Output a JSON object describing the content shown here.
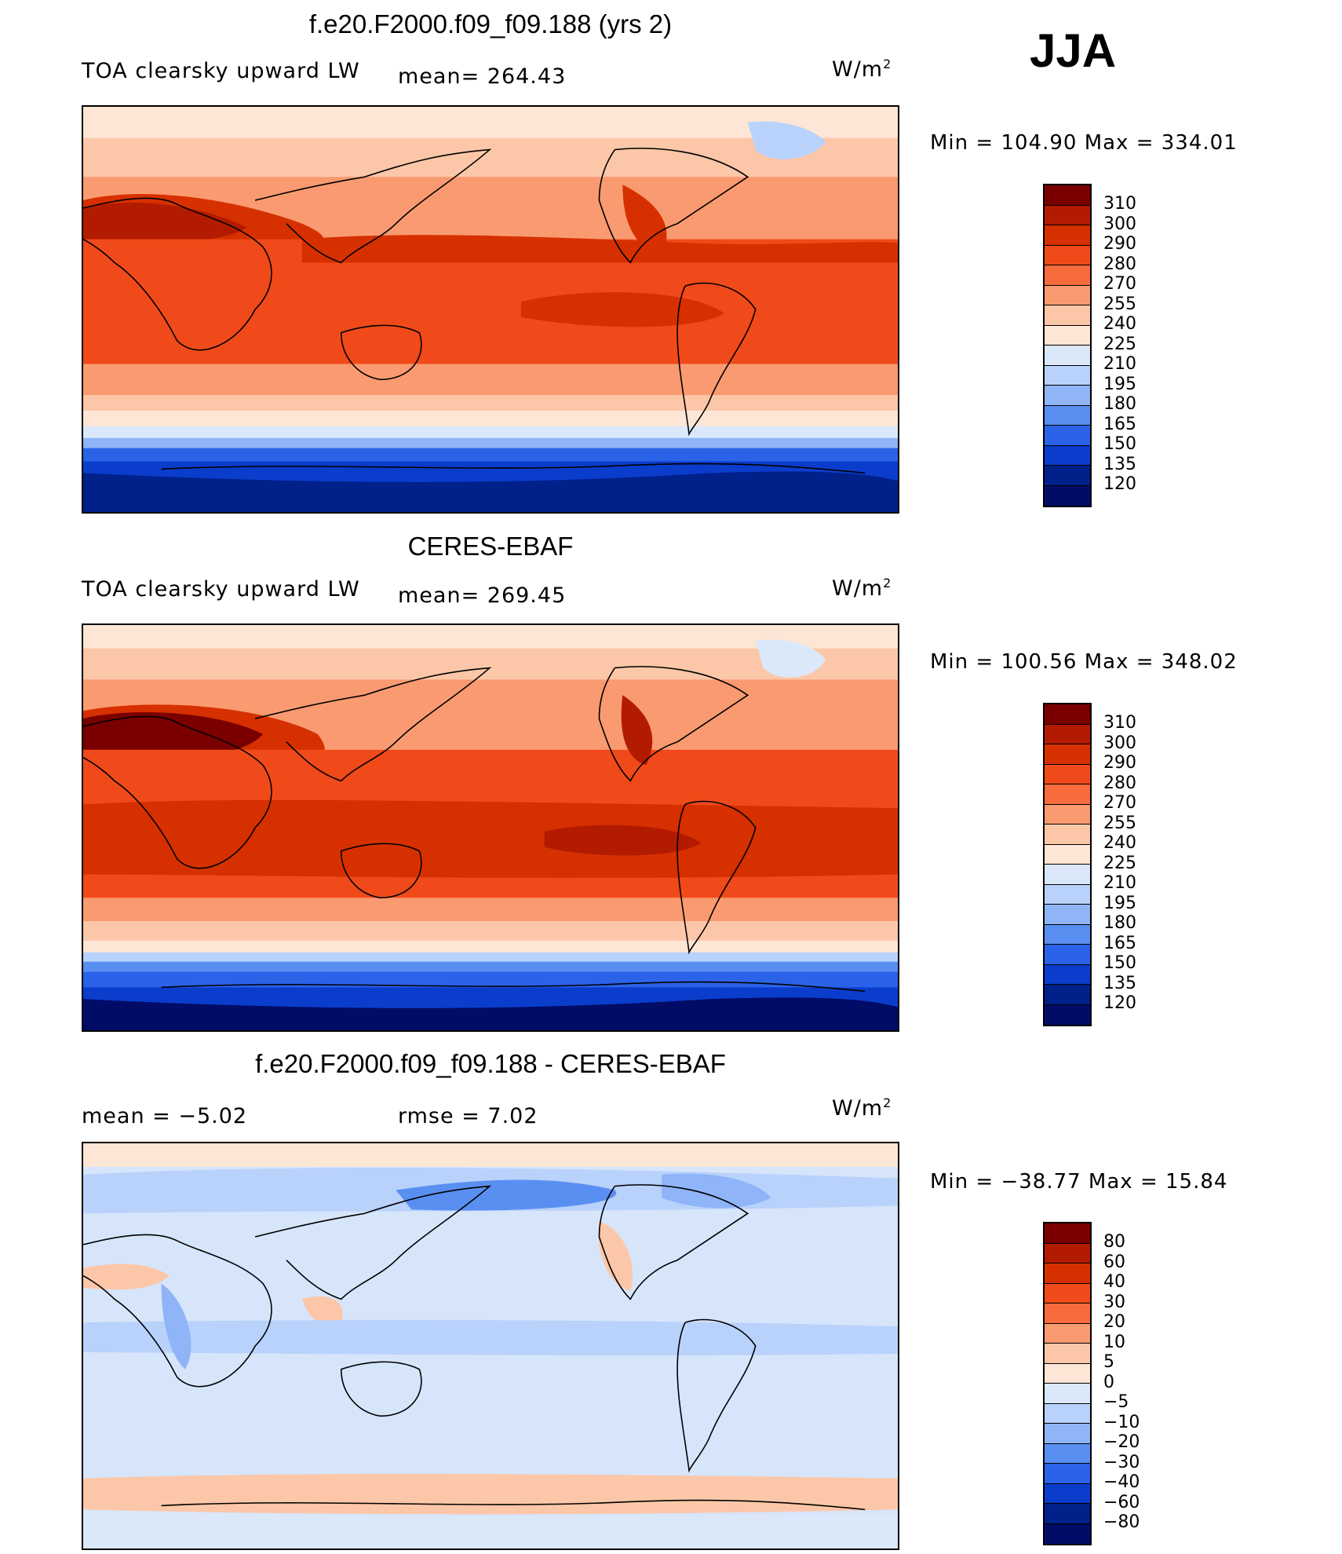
{
  "season": "JJA",
  "panels": [
    {
      "title": "f.e20.F2000.f09_f09.188 (yrs 2)",
      "left_label": "TOA clearsky upward LW",
      "mid_label": "mean= 264.43",
      "units": "W/m",
      "units_sup": "2",
      "minmax": "Min = 104.90 Max = 334.01",
      "colorbar_labels": [
        "310",
        "300",
        "290",
        "280",
        "270",
        "255",
        "240",
        "225",
        "210",
        "195",
        "180",
        "165",
        "150",
        "135",
        "120"
      ],
      "colorbar_colors": [
        "#7a0000",
        "#b31b00",
        "#d63000",
        "#f04a1a",
        "#f76b3c",
        "#fa9a70",
        "#fcc7a8",
        "#fde6d6",
        "#dbe8fa",
        "#b9d2fb",
        "#8fb4f8",
        "#5a8ff2",
        "#2a63e8",
        "#0b3dcc",
        "#00208a",
        "#000c66"
      ]
    },
    {
      "title": "CERES-EBAF",
      "left_label": "TOA clearsky upward LW",
      "mid_label": "mean= 269.45",
      "units": "W/m",
      "units_sup": "2",
      "minmax": "Min = 100.56 Max = 348.02",
      "colorbar_labels": [
        "310",
        "300",
        "290",
        "280",
        "270",
        "255",
        "240",
        "225",
        "210",
        "195",
        "180",
        "165",
        "150",
        "135",
        "120"
      ],
      "colorbar_colors": [
        "#7a0000",
        "#b31b00",
        "#d63000",
        "#f04a1a",
        "#f76b3c",
        "#fa9a70",
        "#fcc7a8",
        "#fde6d6",
        "#dbe8fa",
        "#b9d2fb",
        "#8fb4f8",
        "#5a8ff2",
        "#2a63e8",
        "#0b3dcc",
        "#00208a",
        "#000c66"
      ]
    },
    {
      "title": "f.e20.F2000.f09_f09.188 - CERES-EBAF",
      "left_label": "mean = −5.02",
      "mid_label": "rmse = 7.02",
      "units": "W/m",
      "units_sup": "2",
      "minmax": "Min = −38.77 Max = 15.84",
      "colorbar_labels": [
        "80",
        "60",
        "40",
        "30",
        "20",
        "10",
        "5",
        "0",
        "−5",
        "−10",
        "−20",
        "−30",
        "−40",
        "−60",
        "−80"
      ],
      "colorbar_colors": [
        "#7a0000",
        "#b31b00",
        "#d63000",
        "#f04a1a",
        "#f76b3c",
        "#fa9a70",
        "#fcc7a8",
        "#fde6d6",
        "#dbe8fa",
        "#b9d2fb",
        "#8fb4f8",
        "#5a8ff2",
        "#2a63e8",
        "#0b3dcc",
        "#00208a",
        "#000c66"
      ]
    }
  ],
  "map_colors": {
    "hot": "#b31b00",
    "warm": "#d63000",
    "mid": "#f04a1a",
    "mild": "#fa9a70",
    "pale": "#fde6d6",
    "coolpale": "#dbe8fa",
    "cool": "#8fb4f8",
    "cold": "#2a63e8",
    "coldest": "#00208a",
    "diff_bg": "#d7e5fb",
    "diff_neg": "#b9d2fb",
    "diff_negmore": "#8fb4f8",
    "diff_pos": "#fcc7a8"
  }
}
